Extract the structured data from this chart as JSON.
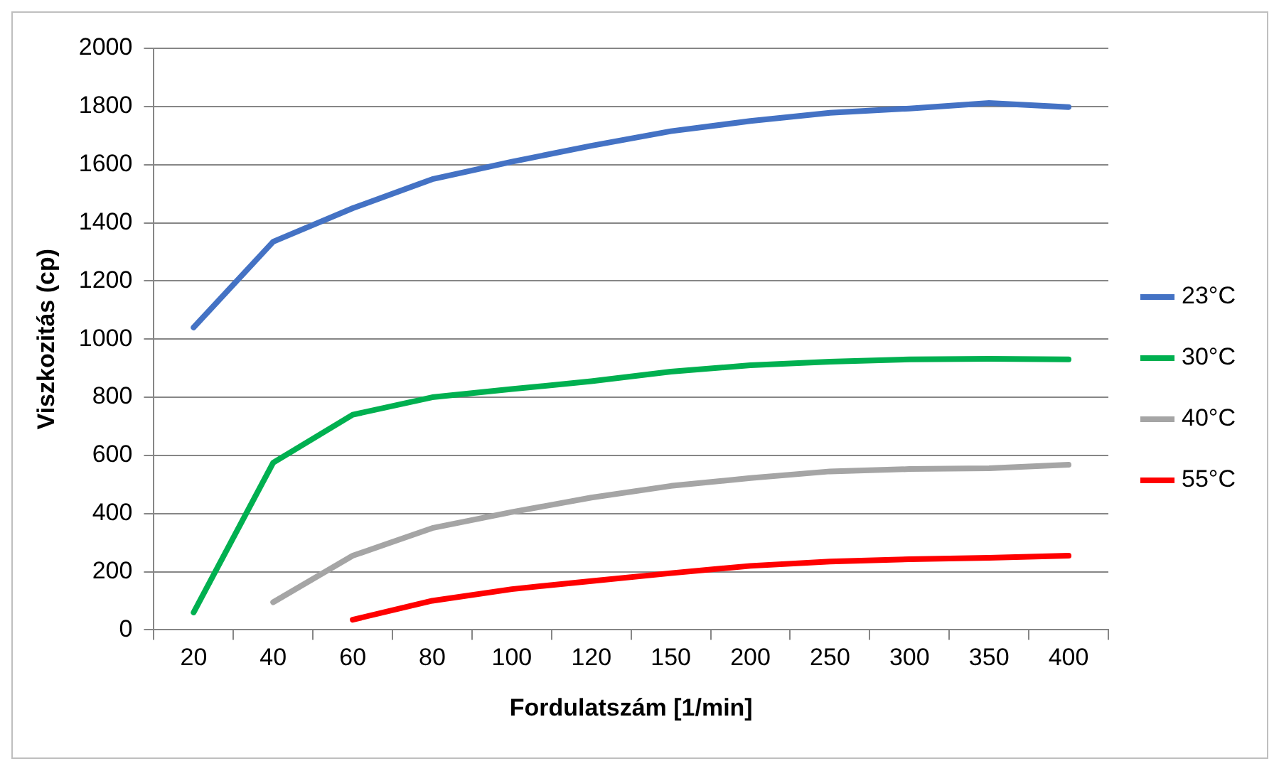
{
  "chart_data": {
    "type": "line",
    "xlabel": "Fordulatszám [1/min]",
    "ylabel": "Viszkozitás (cp)",
    "categories": [
      "20",
      "40",
      "60",
      "80",
      "100",
      "120",
      "150",
      "200",
      "250",
      "300",
      "350",
      "400"
    ],
    "ylim": [
      0,
      2000
    ],
    "yticks": [
      0,
      200,
      400,
      600,
      800,
      1000,
      1200,
      1400,
      1600,
      1800,
      2000
    ],
    "grid": "y",
    "legend": "right",
    "marker": "none",
    "line_style": "solid",
    "series": [
      {
        "name": "23°C",
        "color": "#4472c4",
        "values": [
          1040,
          1335,
          1450,
          1550,
          1610,
          1665,
          1715,
          1750,
          1778,
          1793,
          1812,
          1798
        ]
      },
      {
        "name": "30°C",
        "color": "#00b050",
        "values": [
          60,
          575,
          740,
          800,
          828,
          855,
          888,
          910,
          922,
          930,
          932,
          930
        ]
      },
      {
        "name": "40°C",
        "color": "#a5a5a5",
        "values": [
          null,
          95,
          255,
          350,
          405,
          455,
          495,
          522,
          545,
          553,
          556,
          568
        ]
      },
      {
        "name": "55°C",
        "color": "#ff0000",
        "values": [
          null,
          null,
          35,
          100,
          140,
          168,
          195,
          220,
          235,
          243,
          248,
          255
        ]
      }
    ]
  }
}
